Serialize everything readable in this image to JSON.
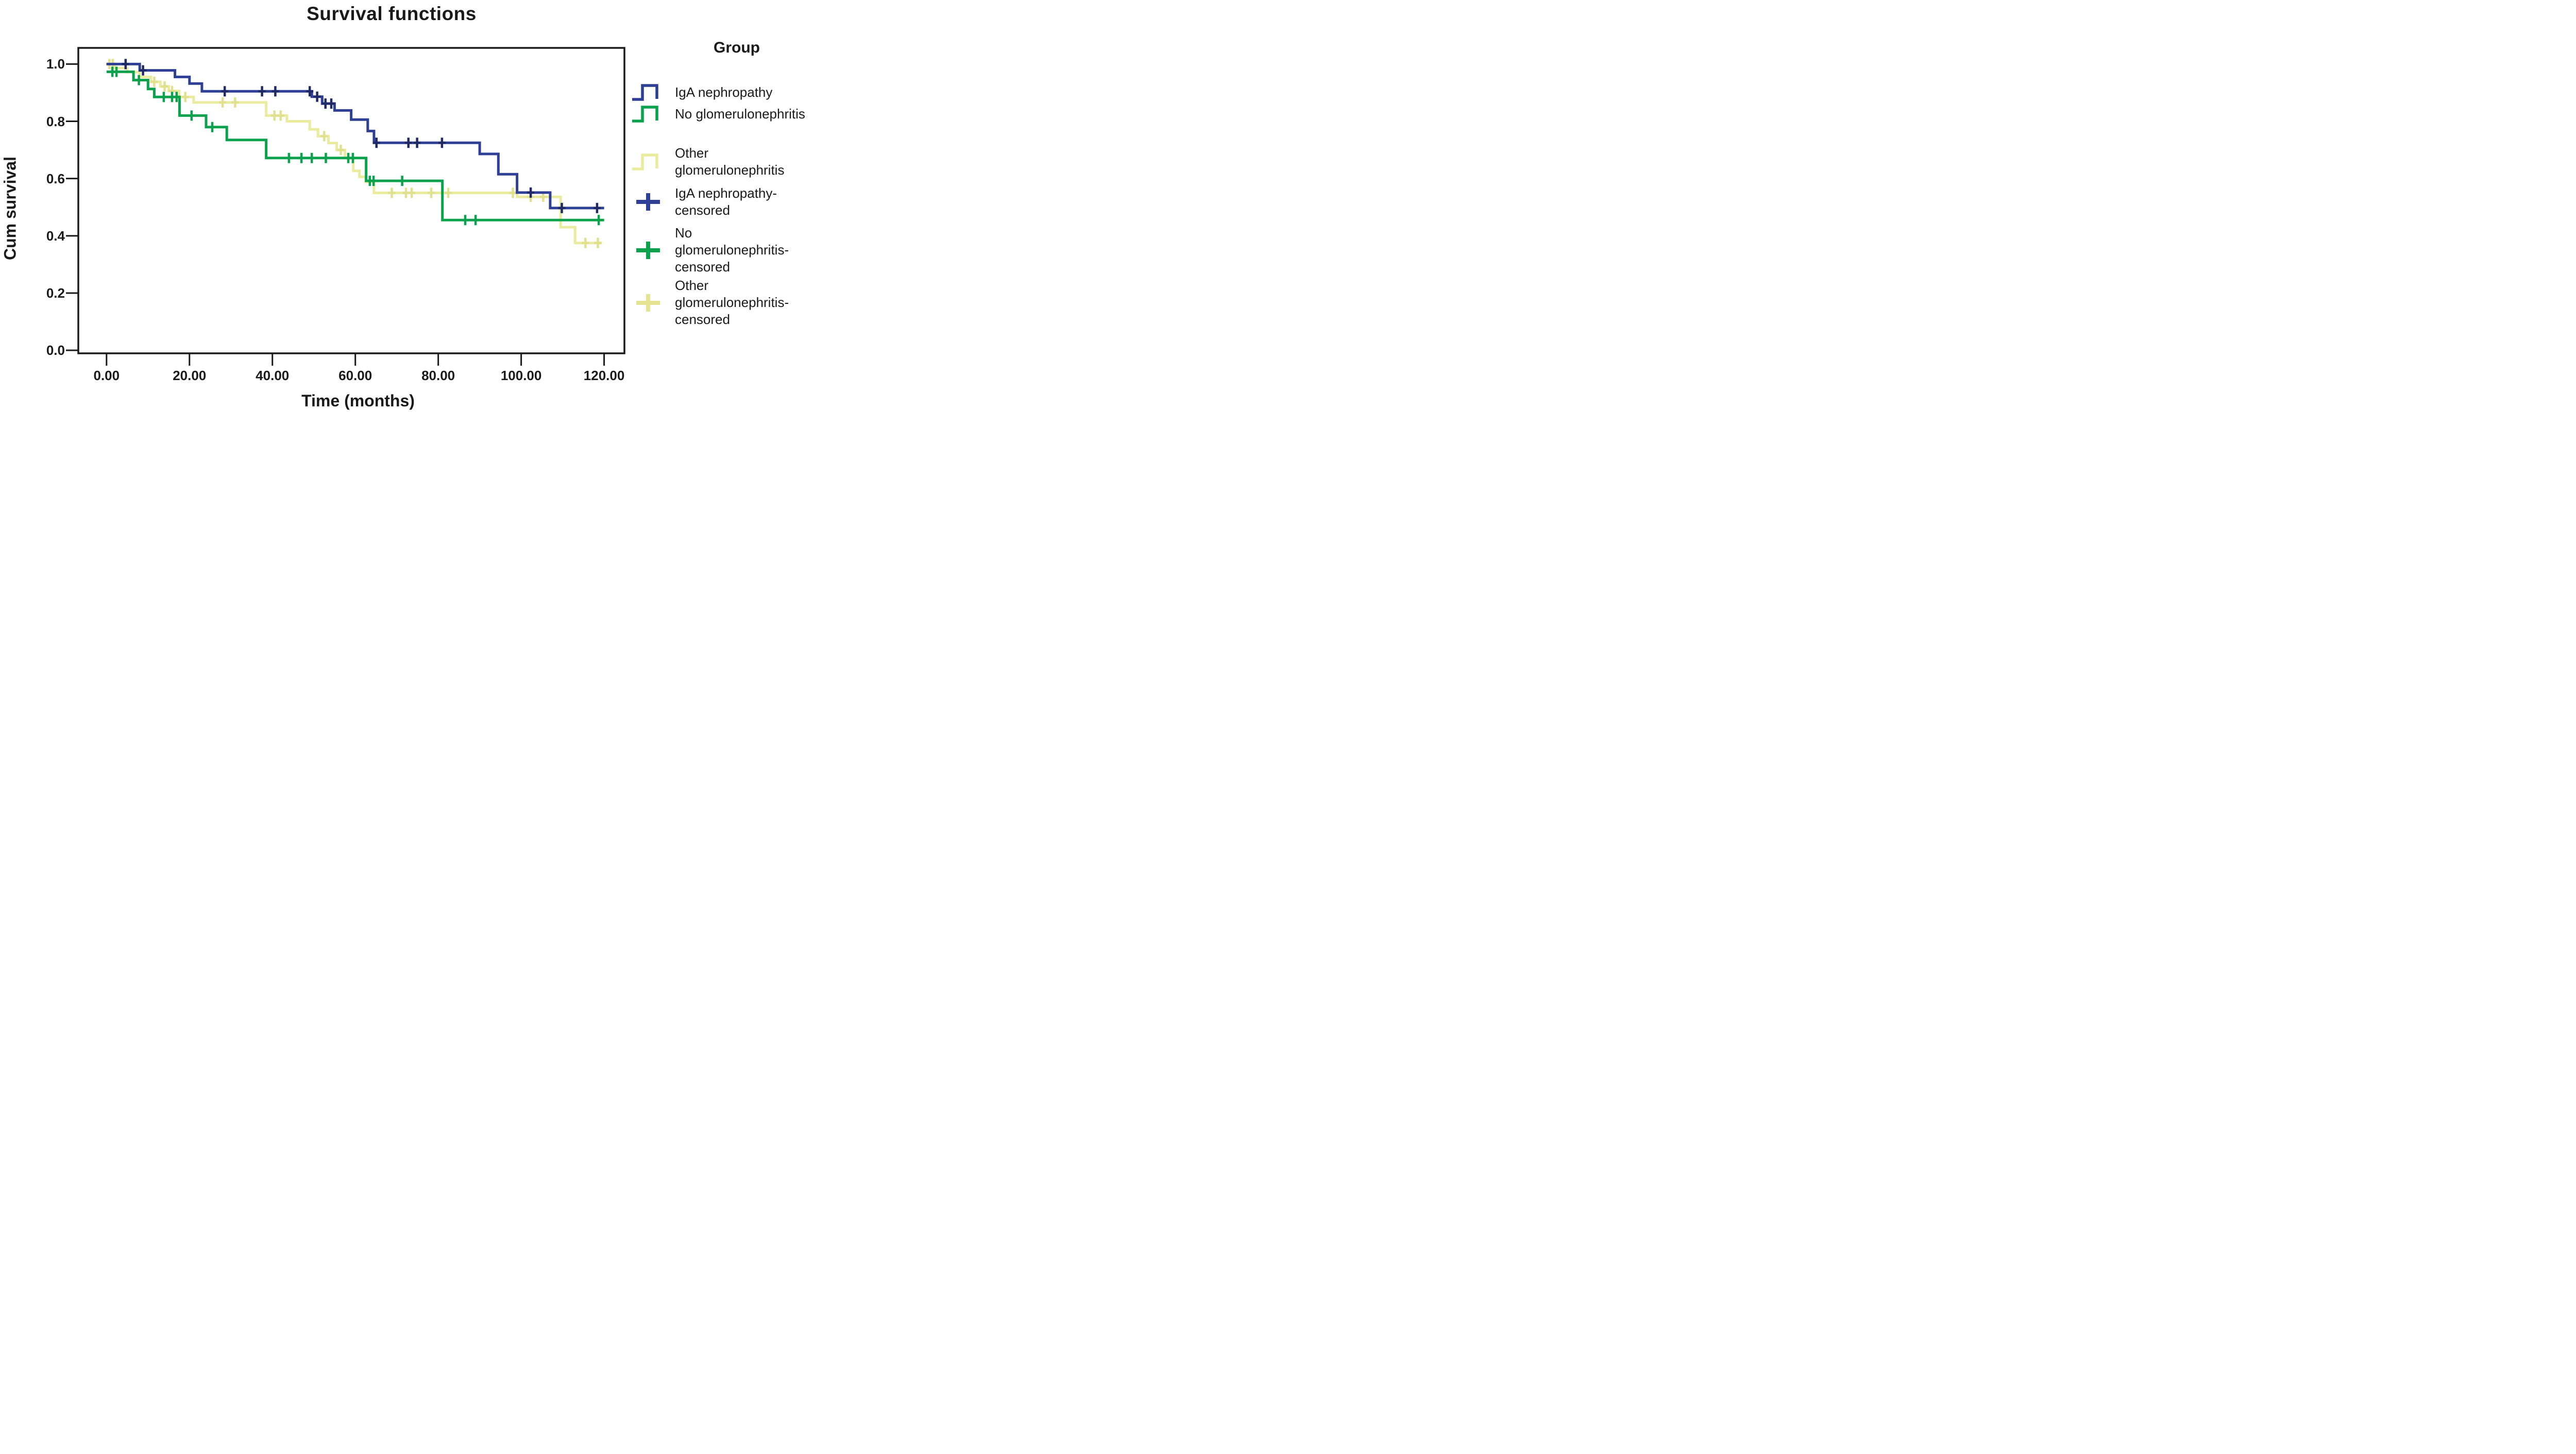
{
  "figure": {
    "title": "Survival functions"
  },
  "axes": {
    "x_label": "Time (months)",
    "y_label": "Cum survival",
    "x_ticks": [
      {
        "label": "0.00",
        "value": 0
      },
      {
        "label": "20.00",
        "value": 20
      },
      {
        "label": "40.00",
        "value": 40
      },
      {
        "label": "60.00",
        "value": 60
      },
      {
        "label": "80.00",
        "value": 80
      },
      {
        "label": "100.00",
        "value": 100
      },
      {
        "label": "120.00",
        "value": 120
      }
    ],
    "y_ticks": [
      {
        "label": "1.0",
        "value": 1.0
      },
      {
        "label": "0.8",
        "value": 0.8
      },
      {
        "label": "0.6",
        "value": 0.6
      },
      {
        "label": "0.4",
        "value": 0.4
      },
      {
        "label": "0.2",
        "value": 0.2
      },
      {
        "label": "0.0",
        "value": 0.0
      }
    ]
  },
  "legend": {
    "title": "Group",
    "entries": [
      {
        "label": "IgA nephropathy",
        "marker": "step",
        "color": "#2e3f96"
      },
      {
        "label": "No glomerulonephritis",
        "marker": "step",
        "color": "#0ba14d"
      },
      {
        "label": "Other glomerulonephritis",
        "marker": "step",
        "color": "#ebeba0"
      },
      {
        "label": "IgA nephropathy-censored",
        "marker": "plus",
        "color": "#2e3f96"
      },
      {
        "label": "No glomerulonephritis-censored",
        "marker": "plus",
        "color": "#0ba14d"
      },
      {
        "label": "Other glomerulonephritis-censored",
        "marker": "plus",
        "color": "#e3e391"
      }
    ]
  },
  "chart_data": {
    "type": "line",
    "subtype": "kaplan-meier-step",
    "title": "Survival functions",
    "xlabel": "Time (months)",
    "ylabel": "Cum survival",
    "xlim": [
      0,
      125
    ],
    "ylim": [
      0,
      1.06
    ],
    "x_tick_values": [
      0,
      20,
      40,
      60,
      80,
      100,
      120
    ],
    "y_tick_values": [
      0,
      0.2,
      0.4,
      0.6,
      0.8,
      1.0
    ],
    "grid": false,
    "legend_position": "right",
    "series": [
      {
        "name": "IgA nephropathy",
        "color": "#2e3f96",
        "censor_color": "#1f2a66",
        "end": 120,
        "steps": [
          [
            0,
            1.0
          ],
          [
            8,
            0.978
          ],
          [
            16.5,
            0.955
          ],
          [
            20,
            0.932
          ],
          [
            23,
            0.905
          ],
          [
            49.5,
            0.886
          ],
          [
            52,
            0.862
          ],
          [
            55,
            0.838
          ],
          [
            59,
            0.806
          ],
          [
            63,
            0.766
          ],
          [
            64.5,
            0.725
          ],
          [
            90,
            0.686
          ],
          [
            94.5,
            0.615
          ],
          [
            99,
            0.551
          ],
          [
            107,
            0.497
          ]
        ],
        "censored": [
          4.6,
          8.8,
          28.5,
          37.5,
          40.7,
          49.0,
          50.8,
          52.8,
          54.2,
          65.1,
          72.8,
          74.9,
          80.9,
          102.3,
          109.8,
          118.3
        ]
      },
      {
        "name": "No glomerulonephritis",
        "color": "#0ba14d",
        "censor_color": "#0ba14d",
        "end": 120,
        "steps": [
          [
            0,
            0.973
          ],
          [
            6.5,
            0.944
          ],
          [
            10,
            0.913
          ],
          [
            11.5,
            0.885
          ],
          [
            17.6,
            0.82
          ],
          [
            24,
            0.78
          ],
          [
            29,
            0.735
          ],
          [
            38.5,
            0.672
          ],
          [
            62.6,
            0.592
          ],
          [
            81,
            0.455
          ]
        ],
        "censored": [
          1.4,
          2.4,
          7.8,
          13.8,
          15.8,
          16.9,
          20.5,
          25.5,
          44,
          47,
          49.5,
          52.9,
          58.3,
          59.4,
          63.5,
          64.4,
          71.3,
          86.5,
          89,
          118.7
        ]
      },
      {
        "name": "Other glomerulonephritis",
        "color": "#ebeba0",
        "censor_color": "#e0e08e",
        "end": 119.5,
        "steps": [
          [
            0,
            1.0
          ],
          [
            2,
            0.986
          ],
          [
            5,
            0.972
          ],
          [
            8,
            0.955
          ],
          [
            10.7,
            0.938
          ],
          [
            13,
            0.922
          ],
          [
            15,
            0.906
          ],
          [
            17.5,
            0.885
          ],
          [
            21,
            0.866
          ],
          [
            38.5,
            0.82
          ],
          [
            43.5,
            0.8
          ],
          [
            49,
            0.772
          ],
          [
            51,
            0.748
          ],
          [
            53.5,
            0.724
          ],
          [
            55.5,
            0.7
          ],
          [
            57.5,
            0.672
          ],
          [
            59.5,
            0.627
          ],
          [
            61,
            0.606
          ],
          [
            62.5,
            0.588
          ],
          [
            64.5,
            0.55
          ],
          [
            99,
            0.536
          ],
          [
            109.5,
            0.43
          ],
          [
            113,
            0.375
          ]
        ],
        "censored": [
          0.7,
          1.5,
          11.5,
          14,
          15.8,
          19,
          28,
          31,
          40.5,
          42,
          52.5,
          56.5,
          68.8,
          72.2,
          73.6,
          78.3,
          82.4,
          98,
          102.3,
          105.3,
          115.5,
          118.5
        ]
      }
    ]
  }
}
